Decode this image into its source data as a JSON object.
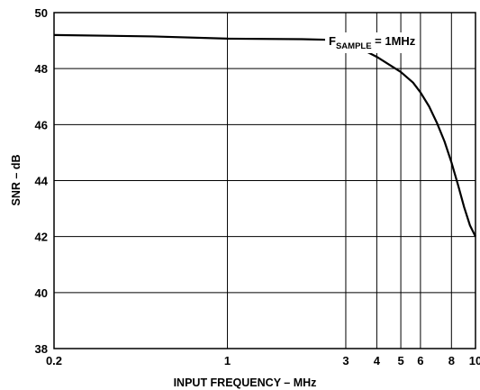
{
  "chart_data": {
    "type": "line",
    "xlabel": "INPUT FREQUENCY – MHz",
    "ylabel": "SNR – dB",
    "x_scale": "log",
    "xlim": [
      0.2,
      10
    ],
    "ylim": [
      38,
      50
    ],
    "x_tick_labels": [
      "0.2",
      "1",
      "3",
      "4",
      "5",
      "6",
      "8",
      "10"
    ],
    "y_tick_labels": [
      "38",
      "40",
      "42",
      "44",
      "46",
      "48",
      "50"
    ],
    "grid": true,
    "annotation": {
      "prefix": "F",
      "subscript": "SAMPLE",
      "suffix": " = 1MHz"
    },
    "series": [
      {
        "x": [
          0.2,
          0.5,
          1.0,
          2.0,
          2.8,
          3.1,
          4.0,
          5.0,
          5.6,
          6.0,
          6.5,
          7.0,
          7.5,
          8.0,
          8.5,
          9.0,
          9.5,
          10.0
        ],
        "y": [
          49.2,
          49.15,
          49.07,
          49.05,
          49.02,
          48.92,
          48.42,
          47.88,
          47.5,
          47.15,
          46.65,
          46.05,
          45.4,
          44.65,
          43.85,
          43.05,
          42.4,
          42.0
        ]
      }
    ]
  }
}
